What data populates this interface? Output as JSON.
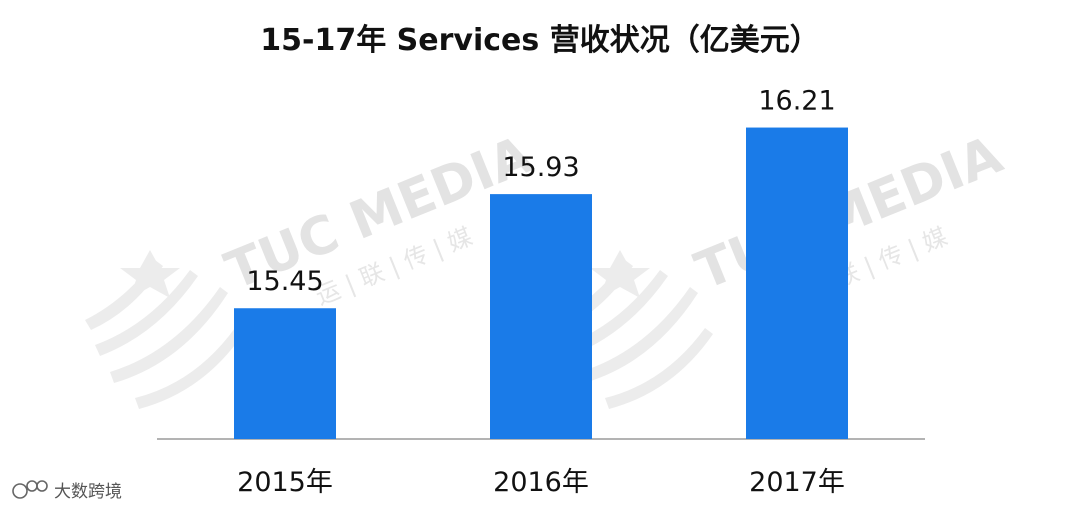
{
  "chart_data": {
    "type": "bar",
    "title": "15-17年 Services 营收状况（亿美元）",
    "categories": [
      "2015年",
      "2016年",
      "2017年"
    ],
    "values": [
      15.45,
      15.93,
      16.21
    ],
    "value_labels": [
      "15.45",
      "15.93",
      "16.21"
    ],
    "ylim": [
      14.9,
      16.41
    ],
    "grid": false,
    "legend": "none",
    "bar_color": "#1a7be8"
  },
  "watermark": {
    "brand": "TUC MEDIA",
    "cn": "运 | 联 | 传 | 媒"
  },
  "corner_logo": {
    "text": "大数跨境"
  }
}
